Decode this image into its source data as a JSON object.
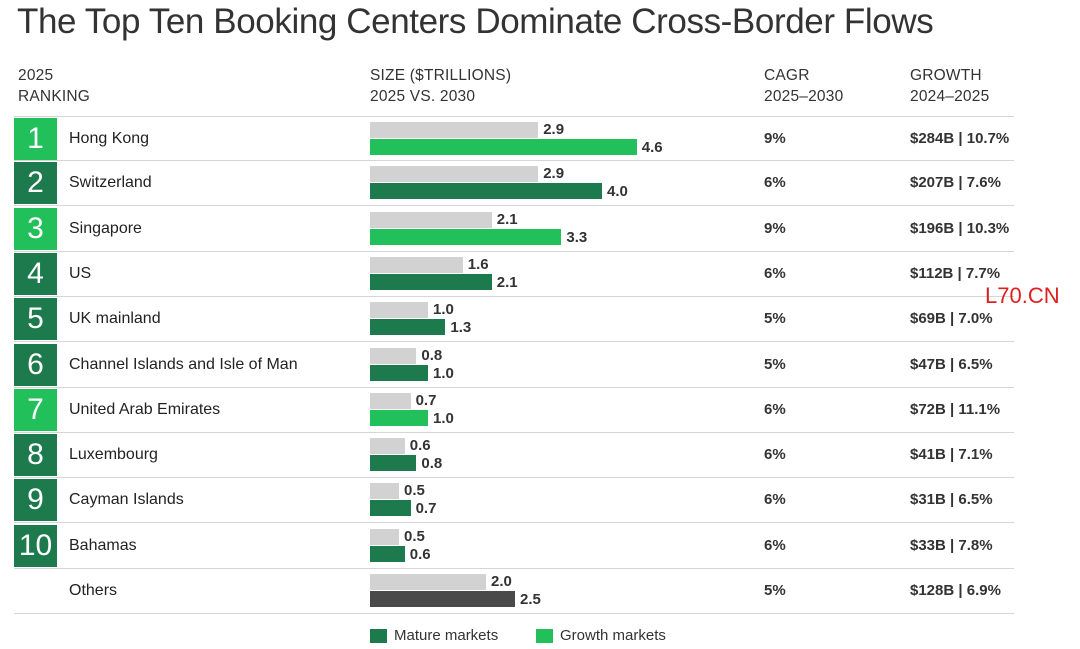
{
  "title": "The Top Ten Booking Centers Dominate Cross-Border Flows",
  "headers": {
    "ranking": [
      "2025",
      "RANKING"
    ],
    "size": [
      "SIZE ($TRILLIONS)",
      "2025 VS. 2030"
    ],
    "cagr": [
      "CAGR",
      "2025–2030"
    ],
    "growth": [
      "GROWTH",
      "2024–2025"
    ]
  },
  "colors": {
    "mature": "#1d7a4d",
    "growth": "#22c05a",
    "value_2025": "#d2d2d2",
    "others": "#4a4a4a"
  },
  "chart_data": {
    "type": "bar",
    "title": "The Top Ten Booking Centers Dominate Cross-Border Flows",
    "categories": [
      "Hong Kong",
      "Switzerland",
      "Singapore",
      "US",
      "UK mainland",
      "Channel Islands and Isle of Man",
      "United Arab Emirates",
      "Luxembourg",
      "Cayman Islands",
      "Bahamas",
      "Others"
    ],
    "series": [
      {
        "name": "2025",
        "values": [
          2.9,
          2.9,
          2.1,
          1.6,
          1.0,
          0.8,
          0.7,
          0.6,
          0.5,
          0.5,
          2.0
        ]
      },
      {
        "name": "2030",
        "values": [
          4.6,
          4.0,
          3.3,
          2.1,
          1.3,
          1.0,
          1.0,
          0.8,
          0.7,
          0.6,
          2.5
        ]
      }
    ],
    "xlim": [
      0,
      5
    ],
    "legend": {
      "placement": "bottom",
      "entries": [
        {
          "label": "Mature markets",
          "color": "#1d7a4d"
        },
        {
          "label": "Growth markets",
          "color": "#22c05a"
        }
      ]
    },
    "rows": [
      {
        "rank": "1",
        "country": "Hong Kong",
        "v2025": 2.9,
        "v2030": 4.6,
        "v2025_label": "2.9",
        "v2030_label": "4.6",
        "cagr": "9%",
        "growth": "$284B | 10.7%",
        "market": "growth"
      },
      {
        "rank": "2",
        "country": "Switzerland",
        "v2025": 2.9,
        "v2030": 4.0,
        "v2025_label": "2.9",
        "v2030_label": "4.0",
        "cagr": "6%",
        "growth": "$207B | 7.6%",
        "market": "mature"
      },
      {
        "rank": "3",
        "country": "Singapore",
        "v2025": 2.1,
        "v2030": 3.3,
        "v2025_label": "2.1",
        "v2030_label": "3.3",
        "cagr": "9%",
        "growth": "$196B | 10.3%",
        "market": "growth"
      },
      {
        "rank": "4",
        "country": "US",
        "v2025": 1.6,
        "v2030": 2.1,
        "v2025_label": "1.6",
        "v2030_label": "2.1",
        "cagr": "6%",
        "growth": "$112B | 7.7%",
        "market": "mature"
      },
      {
        "rank": "5",
        "country": "UK mainland",
        "v2025": 1.0,
        "v2030": 1.3,
        "v2025_label": "1.0",
        "v2030_label": "1.3",
        "cagr": "5%",
        "growth": "$69B | 7.0%",
        "market": "mature"
      },
      {
        "rank": "6",
        "country": "Channel Islands and Isle of Man",
        "v2025": 0.8,
        "v2030": 1.0,
        "v2025_label": "0.8",
        "v2030_label": "1.0",
        "cagr": "5%",
        "growth": "$47B | 6.5%",
        "market": "mature"
      },
      {
        "rank": "7",
        "country": "United Arab Emirates",
        "v2025": 0.7,
        "v2030": 1.0,
        "v2025_label": "0.7",
        "v2030_label": "1.0",
        "cagr": "6%",
        "growth": "$72B | 11.1%",
        "market": "growth"
      },
      {
        "rank": "8",
        "country": "Luxembourg",
        "v2025": 0.6,
        "v2030": 0.8,
        "v2025_label": "0.6",
        "v2030_label": "0.8",
        "cagr": "6%",
        "growth": "$41B | 7.1%",
        "market": "mature"
      },
      {
        "rank": "9",
        "country": "Cayman Islands",
        "v2025": 0.5,
        "v2030": 0.7,
        "v2025_label": "0.5",
        "v2030_label": "0.7",
        "cagr": "6%",
        "growth": "$31B | 6.5%",
        "market": "mature"
      },
      {
        "rank": "10",
        "country": "Bahamas",
        "v2025": 0.5,
        "v2030": 0.6,
        "v2025_label": "0.5",
        "v2030_label": "0.6",
        "cagr": "6%",
        "growth": "$33B | 7.8%",
        "market": "mature"
      },
      {
        "rank": "",
        "country": "Others",
        "v2025": 2.0,
        "v2030": 2.5,
        "v2025_label": "2.0",
        "v2030_label": "2.5",
        "cagr": "5%",
        "growth": "$128B | 6.9%",
        "market": "others"
      }
    ]
  },
  "watermark": "L70.CN"
}
